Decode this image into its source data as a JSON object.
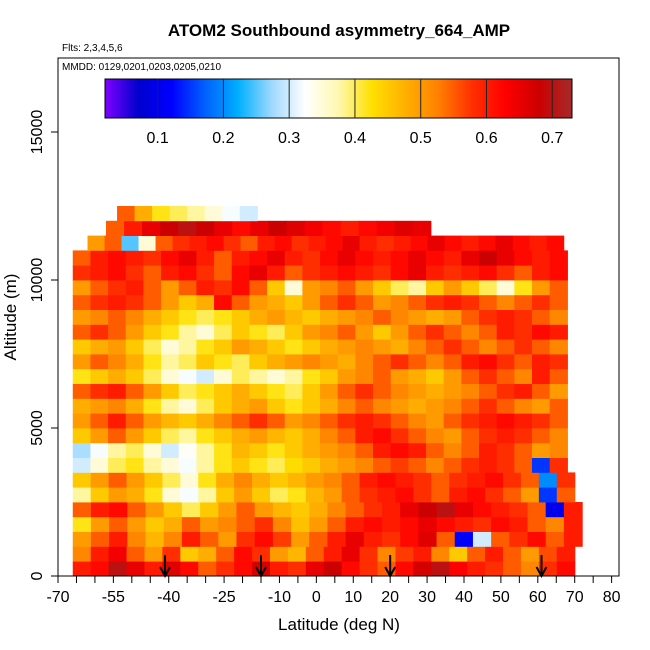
{
  "chart_data": {
    "type": "heatmap",
    "title": "ATOM2 Southbound asymmetry_664_AMP",
    "subtitle_flights": "Flts: 2,3,4,5,6",
    "subtitle_dates": "MMDD: 0129,0201,0203,0205,0210",
    "xlabel": "Latitude (deg N)",
    "ylabel": "Altitude (m)",
    "xlim": [
      -70,
      82
    ],
    "ylim": [
      0,
      17500
    ],
    "x_ticks": [
      -70,
      -65,
      -60,
      -55,
      -50,
      -45,
      -40,
      -35,
      -30,
      -25,
      -20,
      -15,
      -10,
      -5,
      0,
      5,
      10,
      15,
      20,
      25,
      30,
      35,
      40,
      45,
      50,
      55,
      60,
      65,
      70,
      75,
      80
    ],
    "x_tick_labels": [
      "-70",
      "",
      "",
      "-55",
      "",
      "",
      "-40",
      "",
      "",
      "-25",
      "",
      "",
      "-10",
      "",
      "0",
      "",
      "10",
      "",
      "20",
      "",
      "30",
      "",
      "40",
      "",
      "50",
      "",
      "60",
      "",
      "70",
      "",
      "80"
    ],
    "y_ticks": [
      0,
      5000,
      10000,
      15000
    ],
    "y_tick_labels": [
      "0",
      "5000",
      "10000",
      "15000"
    ],
    "colorbar": {
      "range": [
        0.02,
        0.73
      ],
      "ticks": [
        0.1,
        0.2,
        0.3,
        0.4,
        0.5,
        0.6,
        0.7
      ],
      "tick_labels": [
        "0.1",
        "0.2",
        "0.3",
        "0.4",
        "0.5",
        "0.6",
        "0.7"
      ],
      "colors": [
        "#7f00ff",
        "#0000cd",
        "#0000ff",
        "#0060ff",
        "#00b0ff",
        "#9fd8ff",
        "#ffffff",
        "#fff8b0",
        "#ffe000",
        "#ffb000",
        "#ff8000",
        "#ff3000",
        "#ff0000",
        "#cc0000",
        "#a52a2a"
      ]
    },
    "arrows_latitude": [
      -41,
      -15,
      20,
      61
    ],
    "altitude_band_m": 500,
    "layers": [
      {
        "alt": 0,
        "lat_min": -66,
        "lat_max": 70,
        "values": [
          0.6,
          0.62,
          0.7,
          0.65,
          0.6,
          0.66,
          0.62,
          0.55,
          0.58,
          0.62,
          0.67,
          0.6,
          0.58,
          0.65,
          0.68,
          0.62,
          0.58,
          0.55,
          0.62,
          0.67,
          0.7,
          0.63,
          0.6,
          0.58,
          0.55,
          0.52,
          0.58,
          0.62
        ]
      },
      {
        "alt": 500,
        "lat_min": -66,
        "lat_max": 70,
        "values": [
          0.52,
          0.6,
          0.64,
          0.55,
          0.5,
          0.58,
          0.45,
          0.48,
          0.55,
          0.62,
          0.58,
          0.5,
          0.47,
          0.55,
          0.6,
          0.65,
          0.58,
          0.52,
          0.57,
          0.6,
          0.52,
          0.45,
          0.55,
          0.6,
          0.55,
          0.5,
          0.56,
          0.6
        ]
      },
      {
        "alt": 1000,
        "lat_min": -66,
        "lat_max": 72,
        "values": [
          0.5,
          0.55,
          0.6,
          0.52,
          0.47,
          0.52,
          0.6,
          0.55,
          0.5,
          0.58,
          0.62,
          0.57,
          0.5,
          0.55,
          0.6,
          0.65,
          0.6,
          0.58,
          0.62,
          0.66,
          0.55,
          0.12,
          0.3,
          0.55,
          0.58,
          0.62,
          0.55,
          0.6
        ]
      },
      {
        "alt": 1500,
        "lat_min": -66,
        "lat_max": 72,
        "values": [
          0.42,
          0.5,
          0.55,
          0.5,
          0.45,
          0.48,
          0.55,
          0.5,
          0.52,
          0.55,
          0.58,
          0.52,
          0.46,
          0.5,
          0.55,
          0.6,
          0.62,
          0.6,
          0.62,
          0.65,
          0.62,
          0.6,
          0.58,
          0.62,
          0.6,
          0.55,
          0.52,
          0.6
        ]
      },
      {
        "alt": 2000,
        "lat_min": -66,
        "lat_max": 72,
        "values": [
          0.55,
          0.6,
          0.62,
          0.55,
          0.5,
          0.45,
          0.4,
          0.45,
          0.5,
          0.55,
          0.5,
          0.47,
          0.45,
          0.48,
          0.52,
          0.55,
          0.58,
          0.6,
          0.65,
          0.68,
          0.7,
          0.65,
          0.62,
          0.6,
          0.58,
          0.55,
          0.1,
          0.6
        ]
      },
      {
        "alt": 2500,
        "lat_min": -66,
        "lat_max": 70,
        "values": [
          0.38,
          0.45,
          0.5,
          0.48,
          0.42,
          0.35,
          0.32,
          0.38,
          0.45,
          0.5,
          0.45,
          0.4,
          0.42,
          0.47,
          0.5,
          0.55,
          0.58,
          0.6,
          0.62,
          0.58,
          0.55,
          0.6,
          0.62,
          0.58,
          0.55,
          0.5,
          0.15,
          0.55
        ]
      },
      {
        "alt": 3000,
        "lat_min": -66,
        "lat_max": 70,
        "values": [
          0.45,
          0.5,
          0.55,
          0.5,
          0.45,
          0.4,
          0.35,
          0.42,
          0.48,
          0.52,
          0.48,
          0.45,
          0.47,
          0.5,
          0.52,
          0.55,
          0.6,
          0.62,
          0.6,
          0.58,
          0.55,
          0.58,
          0.6,
          0.62,
          0.58,
          0.55,
          0.2,
          0.58
        ]
      },
      {
        "alt": 3500,
        "lat_min": -66,
        "lat_max": 68,
        "values": [
          0.3,
          0.35,
          0.4,
          0.42,
          0.38,
          0.35,
          0.32,
          0.38,
          0.42,
          0.45,
          0.42,
          0.4,
          0.43,
          0.45,
          0.48,
          0.5,
          0.52,
          0.55,
          0.57,
          0.55,
          0.52,
          0.55,
          0.58,
          0.6,
          0.58,
          0.55,
          0.15,
          0.58
        ]
      },
      {
        "alt": 4000,
        "lat_min": -66,
        "lat_max": 68,
        "values": [
          0.28,
          0.32,
          0.38,
          0.4,
          0.35,
          0.3,
          0.33,
          0.38,
          0.42,
          0.47,
          0.45,
          0.42,
          0.45,
          0.48,
          0.5,
          0.52,
          0.55,
          0.6,
          0.62,
          0.6,
          0.55,
          0.52,
          0.55,
          0.6,
          0.58,
          0.55,
          0.5,
          0.52
        ]
      },
      {
        "alt": 4500,
        "lat_min": -66,
        "lat_max": 68,
        "values": [
          0.45,
          0.5,
          0.55,
          0.5,
          0.45,
          0.4,
          0.38,
          0.42,
          0.45,
          0.48,
          0.5,
          0.47,
          0.45,
          0.48,
          0.52,
          0.55,
          0.6,
          0.62,
          0.58,
          0.55,
          0.52,
          0.5,
          0.55,
          0.58,
          0.6,
          0.58,
          0.55,
          0.52
        ]
      },
      {
        "alt": 5000,
        "lat_min": -66,
        "lat_max": 68,
        "values": [
          0.5,
          0.55,
          0.6,
          0.55,
          0.5,
          0.47,
          0.45,
          0.48,
          0.52,
          0.55,
          0.58,
          0.55,
          0.5,
          0.52,
          0.55,
          0.58,
          0.6,
          0.58,
          0.55,
          0.52,
          0.5,
          0.55,
          0.58,
          0.6,
          0.62,
          0.6,
          0.58,
          0.55
        ]
      },
      {
        "alt": 5500,
        "lat_min": -66,
        "lat_max": 68,
        "values": [
          0.48,
          0.5,
          0.52,
          0.48,
          0.42,
          0.38,
          0.35,
          0.4,
          0.45,
          0.48,
          0.5,
          0.45,
          0.42,
          0.45,
          0.48,
          0.52,
          0.55,
          0.52,
          0.5,
          0.48,
          0.5,
          0.52,
          0.55,
          0.58,
          0.55,
          0.52,
          0.5,
          0.55
        ]
      },
      {
        "alt": 6000,
        "lat_min": -66,
        "lat_max": 68,
        "values": [
          0.55,
          0.58,
          0.6,
          0.55,
          0.5,
          0.45,
          0.4,
          0.42,
          0.45,
          0.48,
          0.45,
          0.42,
          0.4,
          0.45,
          0.5,
          0.55,
          0.58,
          0.55,
          0.52,
          0.5,
          0.48,
          0.5,
          0.52,
          0.55,
          0.58,
          0.6,
          0.55,
          0.5
        ]
      },
      {
        "alt": 6500,
        "lat_min": -66,
        "lat_max": 68,
        "values": [
          0.42,
          0.45,
          0.48,
          0.45,
          0.4,
          0.35,
          0.32,
          0.3,
          0.35,
          0.4,
          0.38,
          0.35,
          0.38,
          0.42,
          0.45,
          0.5,
          0.52,
          0.55,
          0.5,
          0.48,
          0.45,
          0.5,
          0.55,
          0.58,
          0.55,
          0.52,
          0.6,
          0.55
        ]
      },
      {
        "alt": 7000,
        "lat_min": -66,
        "lat_max": 68,
        "values": [
          0.5,
          0.55,
          0.52,
          0.48,
          0.42,
          0.38,
          0.4,
          0.45,
          0.42,
          0.4,
          0.45,
          0.48,
          0.5,
          0.52,
          0.5,
          0.48,
          0.52,
          0.55,
          0.58,
          0.55,
          0.52,
          0.55,
          0.6,
          0.62,
          0.58,
          0.55,
          0.6,
          0.58
        ]
      },
      {
        "alt": 7500,
        "lat_min": -66,
        "lat_max": 68,
        "values": [
          0.45,
          0.48,
          0.5,
          0.45,
          0.4,
          0.35,
          0.38,
          0.42,
          0.45,
          0.5,
          0.48,
          0.45,
          0.42,
          0.45,
          0.48,
          0.5,
          0.52,
          0.5,
          0.48,
          0.52,
          0.55,
          0.58,
          0.55,
          0.52,
          0.55,
          0.58,
          0.55,
          0.52
        ]
      },
      {
        "alt": 8000,
        "lat_min": -66,
        "lat_max": 68,
        "values": [
          0.55,
          0.58,
          0.55,
          0.5,
          0.45,
          0.42,
          0.38,
          0.35,
          0.4,
          0.45,
          0.42,
          0.4,
          0.45,
          0.5,
          0.52,
          0.55,
          0.5,
          0.45,
          0.5,
          0.55,
          0.58,
          0.55,
          0.52,
          0.55,
          0.6,
          0.58,
          0.62,
          0.6
        ]
      },
      {
        "alt": 8500,
        "lat_min": -66,
        "lat_max": 68,
        "values": [
          0.5,
          0.52,
          0.55,
          0.52,
          0.48,
          0.45,
          0.42,
          0.4,
          0.42,
          0.45,
          0.48,
          0.5,
          0.47,
          0.45,
          0.48,
          0.5,
          0.52,
          0.55,
          0.52,
          0.5,
          0.48,
          0.5,
          0.55,
          0.58,
          0.6,
          0.58,
          0.55,
          0.52
        ]
      },
      {
        "alt": 9000,
        "lat_min": -66,
        "lat_max": 68,
        "values": [
          0.55,
          0.58,
          0.6,
          0.58,
          0.55,
          0.5,
          0.45,
          0.48,
          0.62,
          0.55,
          0.5,
          0.48,
          0.45,
          0.5,
          0.55,
          0.58,
          0.55,
          0.5,
          0.52,
          0.55,
          0.58,
          0.6,
          0.58,
          0.55,
          0.52,
          0.55,
          0.58,
          0.55
        ]
      },
      {
        "alt": 9500,
        "lat_min": -66,
        "lat_max": 68,
        "values": [
          0.5,
          0.55,
          0.58,
          0.6,
          0.55,
          0.5,
          0.55,
          0.6,
          0.58,
          0.62,
          0.55,
          0.45,
          0.35,
          0.5,
          0.52,
          0.55,
          0.5,
          0.45,
          0.4,
          0.38,
          0.45,
          0.5,
          0.45,
          0.4,
          0.35,
          0.42,
          0.5,
          0.55
        ]
      },
      {
        "alt": 10000,
        "lat_min": -66,
        "lat_max": 68,
        "values": [
          0.58,
          0.6,
          0.62,
          0.58,
          0.55,
          0.6,
          0.62,
          0.58,
          0.55,
          0.62,
          0.65,
          0.6,
          0.55,
          0.58,
          0.6,
          0.62,
          0.6,
          0.58,
          0.62,
          0.65,
          0.6,
          0.58,
          0.6,
          0.62,
          0.58,
          0.55,
          0.6,
          0.62
        ]
      },
      {
        "alt": 10500,
        "lat_min": -66,
        "lat_max": 68,
        "values": [
          0.55,
          0.6,
          0.62,
          0.6,
          0.58,
          0.62,
          0.65,
          0.6,
          0.55,
          0.6,
          0.62,
          0.65,
          0.6,
          0.58,
          0.62,
          0.65,
          0.62,
          0.6,
          0.62,
          0.65,
          0.62,
          0.6,
          0.65,
          0.68,
          0.65,
          0.62,
          0.6,
          0.62
        ]
      },
      {
        "alt": 11000,
        "lat_min": -62,
        "lat_max": 67,
        "values": [
          0.5,
          0.55,
          0.25,
          0.35,
          0.55,
          0.58,
          0.6,
          0.62,
          0.58,
          0.55,
          0.6,
          0.62,
          0.58,
          0.6,
          0.62,
          0.65,
          0.6,
          0.58,
          0.6,
          0.62,
          0.65,
          0.62,
          0.6,
          0.62,
          0.65,
          0.62,
          0.6,
          0.62
        ]
      },
      {
        "alt": 11500,
        "lat_min": -57,
        "lat_max": 31,
        "values": [
          0.55,
          0.6,
          0.65,
          0.68,
          0.7,
          0.68,
          0.65,
          0.62,
          0.65,
          0.68,
          0.66,
          0.64,
          0.62,
          0.6,
          0.62,
          0.64,
          0.66,
          0.65
        ]
      },
      {
        "alt": 12000,
        "lat_min": -54,
        "lat_max": -16,
        "values": [
          0.55,
          0.48,
          0.42,
          0.4,
          0.38,
          0.35,
          0.32,
          0.3
        ]
      }
    ]
  }
}
